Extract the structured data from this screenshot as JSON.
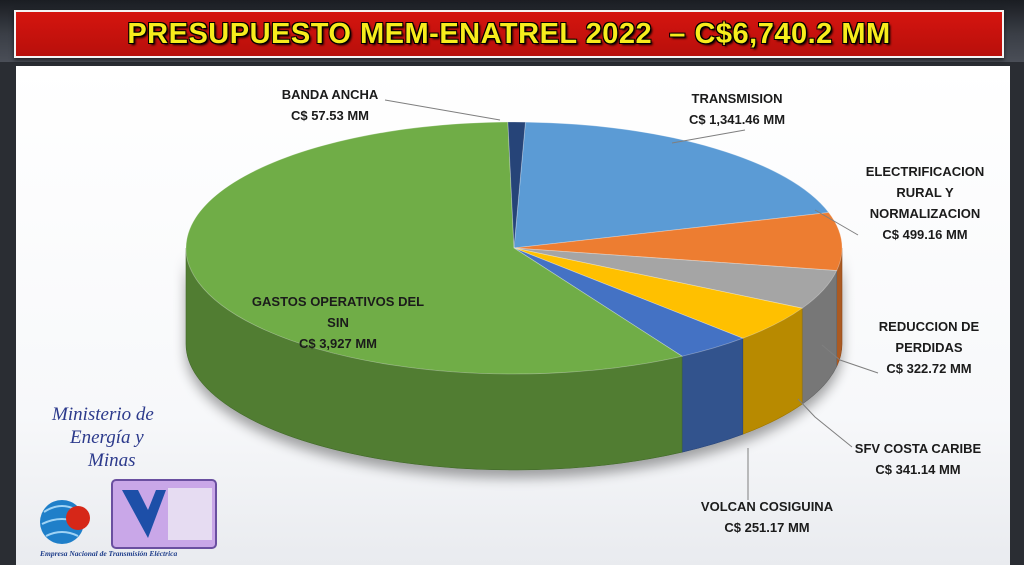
{
  "header": {
    "title": "PRESUPUESTO MEM-ENATREL 2022  – C$6,740.2 MM"
  },
  "chart_data": {
    "type": "pie",
    "title": "PRESUPUESTO MEM-ENATREL 2022  – C$6,740.2 MM",
    "unit": "C$ MM",
    "slices": [
      {
        "name": "TRANSMISION",
        "value_label": "C$ 1,341.46 MM",
        "value": 1341.46,
        "color": "#5b9bd5"
      },
      {
        "name": "ELECTRIFICACION RURAL Y NORMALIZACION",
        "value_label": "C$ 499.16 MM",
        "value": 499.16,
        "color": "#ed7d31"
      },
      {
        "name": "",
        "value_label": "",
        "value": 341.14,
        "color": "#a5a5a5"
      },
      {
        "name": "REDUCCION DE PERDIDAS",
        "value_label": "C$ 322.72 MM",
        "value": 322.72,
        "color": "#ffc000"
      },
      {
        "name": "VOLCAN COSIGUINA",
        "value_label": "C$ 251.17 MM",
        "value": 251.17,
        "color": "#4472c4"
      },
      {
        "name": "GASTOS OPERATIVOS DEL SIN",
        "value_label": "C$ 3,927 MM",
        "value": 3927,
        "color": "#70ad47"
      },
      {
        "name": "BANDA ANCHA",
        "value_label": "C$ 57.53 MM",
        "value": 57.53,
        "color": "#264478"
      }
    ],
    "extra_labels": [
      {
        "name": "SFV COSTA CARIBE",
        "value_label": "C$ 341.14 MM"
      }
    ]
  },
  "logos": {
    "mem_line1": "Ministerio de",
    "mem_line2": "Energía y",
    "mem_line3": "Minas",
    "enatrel_caption": "Empresa Nacional de Transmisión Eléctrica"
  }
}
